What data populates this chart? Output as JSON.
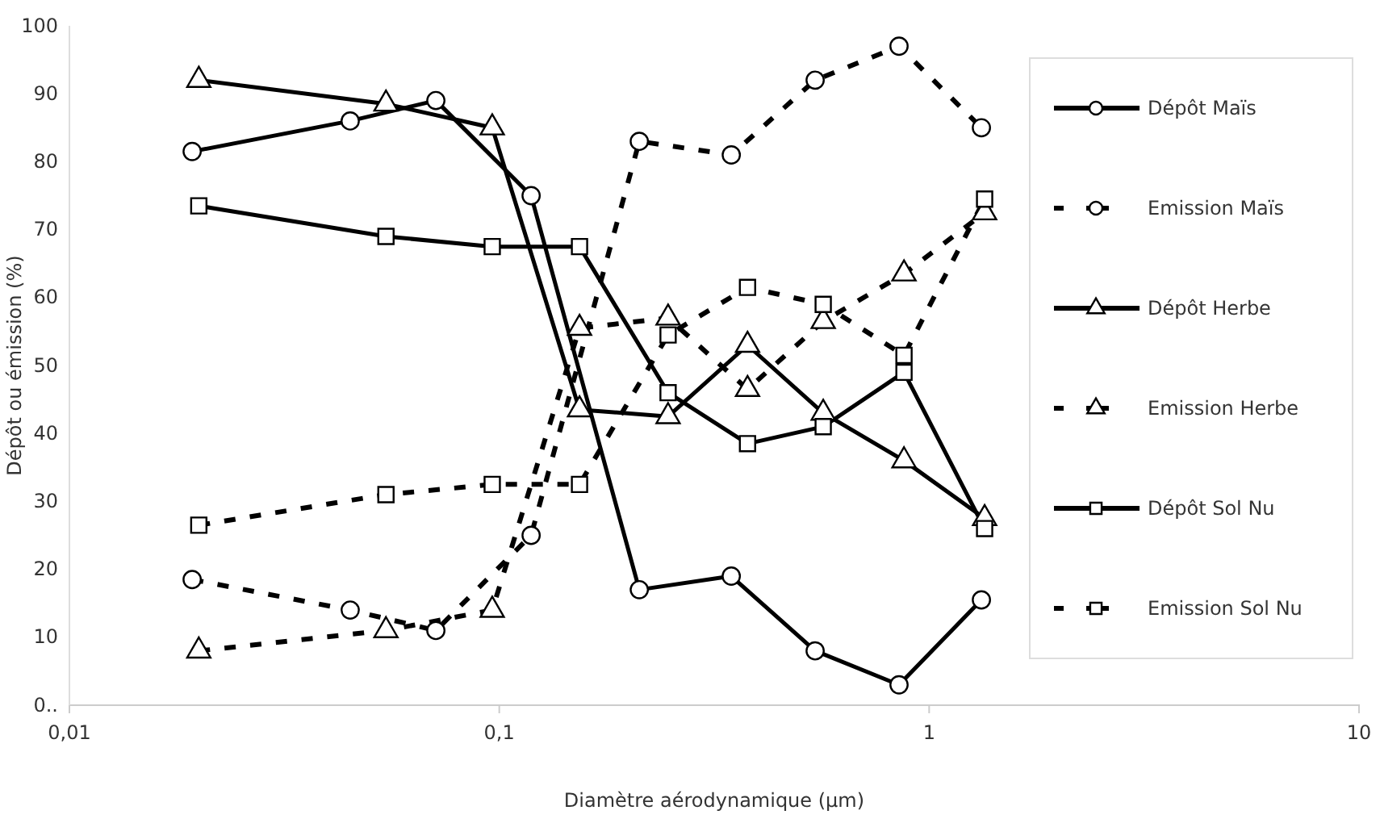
{
  "chart_data": {
    "type": "line",
    "xlabel": "Diamètre aérodynamique (µm)",
    "ylabel": "Dépôt ou émission (%)",
    "log": "x",
    "xlim": [
      0.01,
      10
    ],
    "xticks": [
      {
        "value": 0.01,
        "label": "0,01"
      },
      {
        "value": 0.1,
        "label": "0,1"
      },
      1,
      10
    ],
    "ylim": [
      0,
      100
    ],
    "yticks": [
      {
        "value": 0,
        "label": "0.."
      },
      10,
      20,
      30,
      40,
      50,
      60,
      70,
      80,
      90,
      100
    ],
    "grid": false,
    "legend": "right",
    "series": [
      {
        "name": "Dépôt Maïs",
        "color": "#000000",
        "marker": "circle",
        "line_style": "solid",
        "x": [
          0.0193,
          0.045,
          0.0712,
          0.1186,
          0.2117,
          0.3465,
          0.543,
          0.851,
          1.323
        ],
        "values": [
          81.5,
          86,
          89,
          75,
          17,
          19,
          8,
          3,
          15.5
        ]
      },
      {
        "name": "Emission Maïs",
        "color": "#000000",
        "marker": "circle",
        "line_style": "dashed",
        "x": [
          0.0193,
          0.045,
          0.0712,
          0.1186,
          0.2117,
          0.3465,
          0.543,
          0.851,
          1.323
        ],
        "values": [
          18.5,
          14,
          11,
          25,
          83,
          81,
          92,
          97,
          85
        ]
      },
      {
        "name": "Dépôt Herbe",
        "color": "#000000",
        "marker": "triangle",
        "line_style": "solid",
        "x": [
          0.02,
          0.0545,
          0.0963,
          0.1537,
          0.247,
          0.378,
          0.567,
          0.874,
          1.346
        ],
        "values": [
          92,
          88.5,
          85,
          43.5,
          42.5,
          53,
          43,
          36,
          27.5
        ]
      },
      {
        "name": "Emission Herbe",
        "color": "#000000",
        "marker": "triangle",
        "line_style": "dashed",
        "x": [
          0.02,
          0.0545,
          0.0963,
          0.1537,
          0.247,
          0.378,
          0.567,
          0.874,
          1.346
        ],
        "values": [
          8,
          11,
          14,
          55.5,
          57,
          46.5,
          56.5,
          63.5,
          72.5
        ]
      },
      {
        "name": "Dépôt Sol Nu",
        "color": "#000000",
        "marker": "square",
        "line_style": "solid",
        "x": [
          0.02,
          0.0545,
          0.0963,
          0.1537,
          0.247,
          0.378,
          0.567,
          0.874,
          1.346
        ],
        "values": [
          73.5,
          69,
          67.5,
          67.5,
          46,
          38.5,
          41,
          49,
          26
        ]
      },
      {
        "name": "Emission Sol Nu",
        "color": "#000000",
        "marker": "square",
        "line_style": "dashed",
        "x": [
          0.02,
          0.0545,
          0.0963,
          0.1537,
          0.247,
          0.378,
          0.567,
          0.874,
          1.346
        ],
        "values": [
          26.5,
          31,
          32.5,
          32.5,
          54.5,
          61.5,
          59,
          51.5,
          74.5
        ]
      }
    ]
  }
}
